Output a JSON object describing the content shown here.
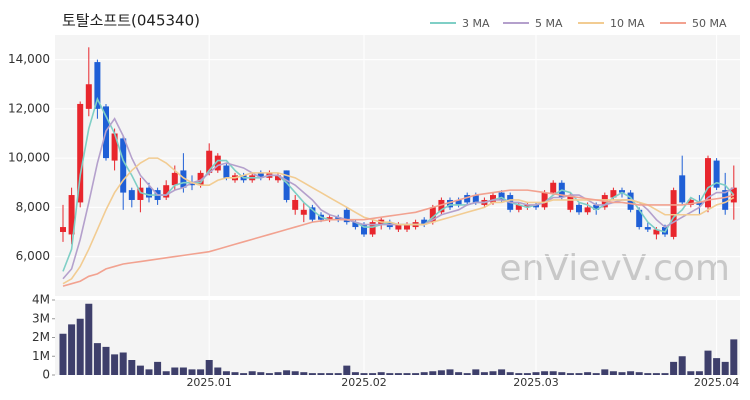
{
  "chart_data": [
    {
      "type": "candlestick",
      "title": "토탈소프트(045340)",
      "watermark": "enVievV.com",
      "categories": [
        null,
        null,
        null,
        null,
        null,
        null,
        null,
        null,
        null,
        null,
        null,
        null,
        null,
        null,
        null,
        null,
        null,
        "2025.01",
        null,
        null,
        null,
        null,
        null,
        null,
        null,
        null,
        null,
        null,
        null,
        null,
        null,
        null,
        null,
        null,
        null,
        "2025.02",
        null,
        null,
        null,
        null,
        null,
        null,
        null,
        null,
        null,
        null,
        null,
        null,
        null,
        null,
        null,
        null,
        null,
        null,
        null,
        "2025.03",
        null,
        null,
        null,
        null,
        null,
        null,
        null,
        null,
        null,
        null,
        null,
        null,
        null,
        null,
        null,
        null,
        null,
        null,
        null,
        null,
        "2025.04",
        null,
        null
      ],
      "open": [
        7000,
        6900,
        8200,
        12000,
        13900,
        12100,
        9900,
        10800,
        8700,
        8300,
        8800,
        8700,
        8400,
        8900,
        9500,
        9000,
        8900,
        9400,
        9500,
        9700,
        9100,
        9300,
        9100,
        9400,
        9200,
        9100,
        9500,
        7900,
        7700,
        8000,
        7700,
        7500,
        7600,
        7900,
        7400,
        7300,
        6900,
        7300,
        7400,
        7100,
        7100,
        7200,
        7500,
        7400,
        7800,
        8300,
        8300,
        8500,
        8500,
        8100,
        8200,
        8600,
        8500,
        7900,
        8000,
        8100,
        8000,
        8600,
        9000,
        7900,
        8100,
        7800,
        8100,
        8000,
        8400,
        8700,
        8600,
        7900,
        7200,
        6900,
        7200,
        6800,
        9300,
        8100,
        8200,
        8000,
        9900,
        8700,
        8200
      ],
      "high": [
        8100,
        8800,
        12300,
        14500,
        14000,
        12200,
        11200,
        10900,
        8800,
        9200,
        9000,
        8800,
        9100,
        9700,
        10200,
        9300,
        9500,
        10600,
        10200,
        9800,
        9400,
        9400,
        9400,
        9500,
        9500,
        9400,
        9500,
        8500,
        8200,
        8100,
        7800,
        7700,
        7700,
        8000,
        7500,
        7400,
        7500,
        7600,
        7500,
        7400,
        7400,
        7500,
        7600,
        8100,
        8400,
        8400,
        8400,
        8600,
        8600,
        8400,
        8600,
        8700,
        8600,
        8200,
        8200,
        8200,
        8700,
        9100,
        9100,
        8600,
        8200,
        8200,
        8200,
        8600,
        8800,
        8800,
        8700,
        8000,
        7400,
        7200,
        7300,
        8800,
        10100,
        8400,
        8500,
        10100,
        10000,
        9400,
        9700
      ],
      "low": [
        6600,
        6500,
        8000,
        11700,
        11600,
        9900,
        9500,
        7900,
        8000,
        7800,
        8200,
        8100,
        8300,
        8700,
        8600,
        8700,
        8800,
        9300,
        9400,
        9100,
        9000,
        9000,
        9000,
        9100,
        9100,
        9000,
        8200,
        7700,
        7400,
        7400,
        7400,
        7400,
        7400,
        7300,
        7100,
        6800,
        6800,
        7100,
        7100,
        7000,
        7000,
        7100,
        7200,
        7300,
        7700,
        7900,
        8000,
        8100,
        8100,
        8000,
        8100,
        8200,
        7800,
        7800,
        7900,
        7900,
        7900,
        8500,
        8300,
        7800,
        7700,
        7700,
        7700,
        7900,
        8300,
        8400,
        7800,
        7100,
        7000,
        6700,
        6800,
        6700,
        8100,
        8000,
        7700,
        7800,
        8700,
        7700,
        7500
      ],
      "close": [
        7200,
        8500,
        12200,
        13000,
        12000,
        10000,
        11000,
        8600,
        8300,
        8800,
        8400,
        8300,
        8900,
        9400,
        8800,
        8900,
        9400,
        10300,
        10100,
        9200,
        9300,
        9100,
        9300,
        9200,
        9400,
        9300,
        8300,
        8300,
        7900,
        7500,
        7500,
        7600,
        7500,
        7400,
        7200,
        6900,
        7400,
        7500,
        7200,
        7300,
        7300,
        7400,
        7300,
        8000,
        8300,
        8000,
        8100,
        8200,
        8200,
        8300,
        8500,
        8300,
        7900,
        8100,
        8100,
        8000,
        8600,
        9000,
        8400,
        8500,
        7800,
        8000,
        7900,
        8500,
        8700,
        8600,
        7900,
        7200,
        7100,
        7100,
        6900,
        8700,
        8200,
        8300,
        8100,
        10000,
        8800,
        7900,
        8800
      ],
      "up_color": "#e8262d",
      "down_color": "#1f5fd6",
      "series": [
        {
          "name": "3 MA",
          "color": "#7fcfc6",
          "values": [
            5400,
            6300,
            9300,
            11200,
            12400,
            11700,
            11000,
            9900,
            9300,
            8600,
            8500,
            8500,
            8500,
            8900,
            9000,
            9000,
            9000,
            9500,
            9900,
            9900,
            9500,
            9200,
            9200,
            9200,
            9300,
            9300,
            9000,
            8600,
            8200,
            7900,
            7600,
            7500,
            7500,
            7500,
            7400,
            7200,
            7200,
            7300,
            7400,
            7300,
            7300,
            7300,
            7300,
            7600,
            7900,
            8100,
            8100,
            8100,
            8200,
            8200,
            8300,
            8400,
            8200,
            8100,
            8000,
            8100,
            8200,
            8500,
            8700,
            8600,
            8200,
            8100,
            7900,
            8100,
            8400,
            8600,
            8400,
            7900,
            7400,
            7100,
            7000,
            7600,
            7900,
            8400,
            8200,
            8800,
            9000,
            8900,
            8500
          ]
        },
        {
          "name": "5 MA",
          "color": "#b4a0cc",
          "values": [
            5100,
            5500,
            6700,
            8200,
            9800,
            11100,
            11600,
            10900,
            10000,
            9300,
            8900,
            8500,
            8500,
            8700,
            8800,
            9000,
            9100,
            9400,
            9700,
            9800,
            9700,
            9600,
            9400,
            9200,
            9300,
            9300,
            9100,
            8900,
            8600,
            8300,
            7900,
            7700,
            7600,
            7500,
            7400,
            7300,
            7300,
            7300,
            7300,
            7300,
            7300,
            7300,
            7300,
            7500,
            7700,
            7800,
            7900,
            8100,
            8200,
            8200,
            8300,
            8300,
            8200,
            8200,
            8100,
            8100,
            8200,
            8400,
            8400,
            8500,
            8500,
            8300,
            8100,
            8100,
            8200,
            8300,
            8300,
            8200,
            7900,
            7500,
            7200,
            7400,
            7600,
            7800,
            8000,
            8400,
            8600,
            8600,
            8800
          ]
        },
        {
          "name": "10 MA",
          "color": "#f2cc92",
          "values": [
            4900,
            5100,
            5600,
            6300,
            7100,
            7900,
            8600,
            9100,
            9500,
            9800,
            10000,
            10000,
            9800,
            9500,
            9200,
            9000,
            8900,
            8900,
            9100,
            9200,
            9200,
            9300,
            9400,
            9400,
            9400,
            9400,
            9300,
            9200,
            9000,
            8800,
            8600,
            8400,
            8200,
            8000,
            7800,
            7600,
            7500,
            7400,
            7400,
            7300,
            7300,
            7300,
            7300,
            7400,
            7500,
            7600,
            7700,
            7800,
            7900,
            8000,
            8200,
            8200,
            8300,
            8300,
            8200,
            8200,
            8200,
            8300,
            8300,
            8300,
            8300,
            8300,
            8300,
            8300,
            8300,
            8300,
            8300,
            8200,
            8100,
            7900,
            7700,
            7700,
            7700,
            7700,
            7700,
            7900,
            8100,
            8200,
            8400
          ]
        },
        {
          "name": "50 MA",
          "color": "#f2a290",
          "values": [
            4800,
            4900,
            5000,
            5200,
            5300,
            5500,
            5600,
            5700,
            5750,
            5800,
            5850,
            5900,
            5950,
            6000,
            6050,
            6100,
            6150,
            6200,
            6300,
            6400,
            6500,
            6600,
            6700,
            6800,
            6900,
            7000,
            7100,
            7200,
            7300,
            7400,
            7450,
            7500,
            7500,
            7500,
            7500,
            7500,
            7550,
            7600,
            7650,
            7700,
            7750,
            7800,
            7900,
            8000,
            8100,
            8200,
            8300,
            8400,
            8500,
            8550,
            8600,
            8650,
            8700,
            8700,
            8700,
            8650,
            8600,
            8550,
            8500,
            8450,
            8400,
            8350,
            8300,
            8250,
            8200,
            8200,
            8150,
            8100,
            8100,
            8100,
            8100,
            8100,
            8100,
            8150,
            8200,
            8300,
            8350,
            8400,
            8500
          ]
        }
      ],
      "ylim": [
        4400,
        15000
      ],
      "yticks": [
        {
          "value": 6000,
          "label": "6,000"
        },
        {
          "value": 8000,
          "label": "8,000"
        },
        {
          "value": 10000,
          "label": "10,000"
        },
        {
          "value": 12000,
          "label": "12,000"
        },
        {
          "value": 14000,
          "label": "14,000"
        }
      ],
      "grid": true
    },
    {
      "type": "bar",
      "color": "#3e3f6b",
      "values": [
        2200000,
        2700000,
        3000000,
        3800000,
        1700000,
        1500000,
        1100000,
        1200000,
        800000,
        500000,
        300000,
        700000,
        200000,
        400000,
        400000,
        300000,
        300000,
        800000,
        400000,
        200000,
        150000,
        100000,
        200000,
        150000,
        100000,
        150000,
        250000,
        200000,
        150000,
        100000,
        100000,
        100000,
        100000,
        500000,
        150000,
        100000,
        100000,
        150000,
        100000,
        100000,
        100000,
        100000,
        150000,
        200000,
        250000,
        300000,
        150000,
        100000,
        300000,
        150000,
        200000,
        300000,
        150000,
        100000,
        100000,
        150000,
        200000,
        200000,
        150000,
        100000,
        100000,
        150000,
        100000,
        300000,
        200000,
        150000,
        200000,
        150000,
        100000,
        100000,
        100000,
        700000,
        1000000,
        200000,
        200000,
        1300000,
        900000,
        700000,
        1900000
      ],
      "ylim": [
        0,
        4000000
      ],
      "yticks": [
        0,
        {
          "value": 1000000,
          "label": "1M"
        },
        {
          "value": 2000000,
          "label": "2M"
        },
        {
          "value": 3000000,
          "label": "3M"
        },
        {
          "value": 4000000,
          "label": "4M"
        }
      ]
    }
  ]
}
